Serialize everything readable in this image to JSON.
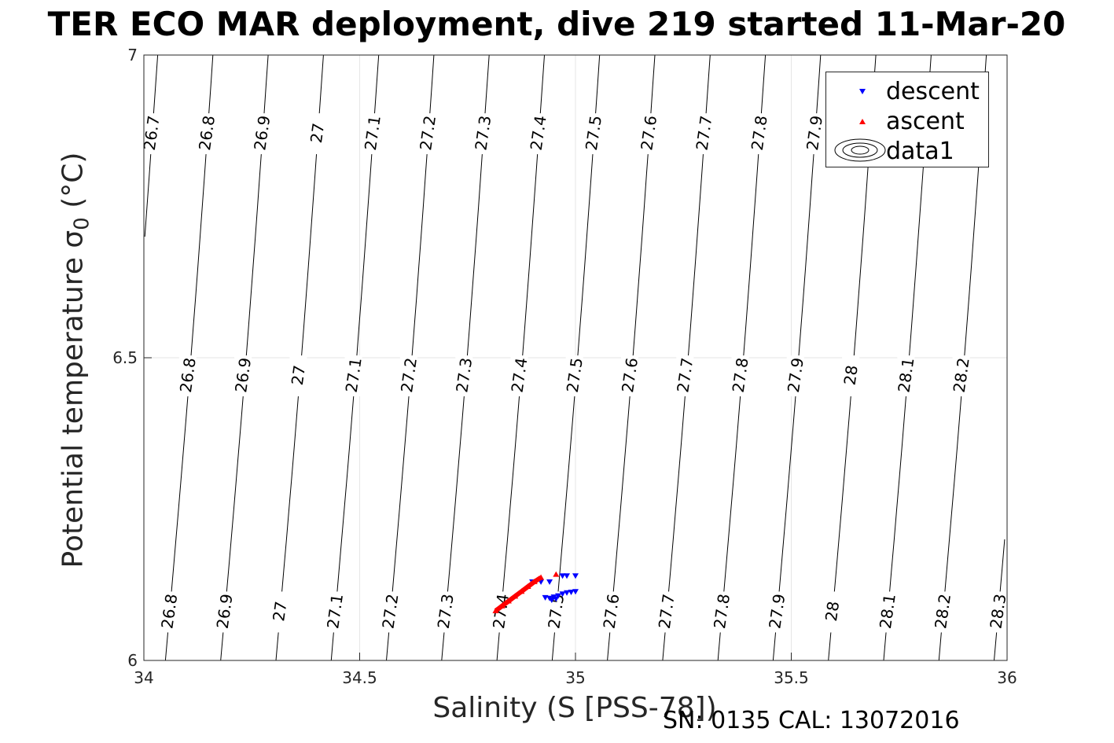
{
  "chart_data": {
    "type": "scatter",
    "title": "TER ECO MAR deployment, dive 219 started 11-Mar-20",
    "xlabel": "Salinity (S [PSS-78])",
    "ylabel": "Potential temperature σ",
    "ylabel_subscript": "0",
    "ylabel_unit": " (°C)",
    "xlim": [
      34,
      36
    ],
    "ylim": [
      6,
      7
    ],
    "x_ticks": [
      "34",
      "34.5",
      "35",
      "35.5",
      "36"
    ],
    "y_ticks": [
      "6",
      "6.5",
      "7"
    ],
    "grid": true,
    "legend_position": "top-right",
    "legend": [
      {
        "label": "descent",
        "marker": "triangle-down",
        "color": "#0000ff"
      },
      {
        "label": "ascent",
        "marker": "triangle-up",
        "color": "#ff0000"
      },
      {
        "label": "data1",
        "marker": "contour",
        "color": "#000000"
      }
    ],
    "series": [
      {
        "name": "descent",
        "color": "#0000ff",
        "marker": "triangle-down",
        "points": [
          [
            34.9,
            6.13
          ],
          [
            34.92,
            6.13
          ],
          [
            34.94,
            6.13
          ],
          [
            34.97,
            6.14
          ],
          [
            34.98,
            6.14
          ],
          [
            35.0,
            6.14
          ],
          [
            34.93,
            6.104
          ],
          [
            34.94,
            6.103
          ],
          [
            34.95,
            6.105
          ],
          [
            34.96,
            6.107
          ],
          [
            34.97,
            6.11
          ],
          [
            34.98,
            6.112
          ],
          [
            34.99,
            6.113
          ],
          [
            35.0,
            6.114
          ],
          [
            34.945,
            6.1
          ],
          [
            34.955,
            6.102
          ]
        ]
      },
      {
        "name": "ascent",
        "color": "#ff0000",
        "marker": "triangle-up",
        "points": [
          [
            34.815,
            6.082
          ],
          [
            34.83,
            6.09
          ],
          [
            34.845,
            6.098
          ],
          [
            34.86,
            6.106
          ],
          [
            34.875,
            6.114
          ],
          [
            34.89,
            6.122
          ],
          [
            34.905,
            6.13
          ],
          [
            34.92,
            6.137
          ],
          [
            34.955,
            6.142
          ]
        ]
      }
    ],
    "contours": {
      "bands": [
        {
          "t": 7.0,
          "x0": 34.0,
          "rows": [
            "26.7",
            "26.8",
            "26.9",
            "27",
            "27.1",
            "27.2",
            "27.3",
            "27.4",
            "27.5",
            "27.6",
            "27.7",
            "27.8",
            "27.9",
            "28",
            "28.1",
            "28.2"
          ]
        },
        {
          "t": 6.5,
          "x0": 34.05,
          "rows": [
            "26.8",
            "26.9",
            "27",
            "27.1",
            "27.2",
            "27.3",
            "27.4",
            "27.5",
            "27.6",
            "27.7",
            "27.8",
            "27.9",
            "28",
            "28.1",
            "28.2"
          ]
        },
        {
          "t": 6.0,
          "x0": 34.05,
          "rows": [
            "26.8",
            "26.9",
            "27",
            "27.1",
            "27.2",
            "27.3",
            "27.4",
            "27.5",
            "27.6",
            "27.7",
            "27.8",
            "27.9",
            "28",
            "28.1",
            "28.2",
            "28.3"
          ]
        }
      ],
      "label_levels_top": [
        "26.7",
        "26.8",
        "26.9",
        "27",
        "27.1",
        "27.2",
        "27.3",
        "27.4",
        "27.5",
        "27.6",
        "27.7",
        "27.8",
        "27.9",
        "28",
        "28.1",
        "28.2"
      ],
      "label_levels_mid": [
        "26.8",
        "26.9",
        "27",
        "27.1",
        "27.2",
        "27.3",
        "27.4",
        "27.5",
        "27.6",
        "27.7",
        "27.8",
        "27.9",
        "28",
        "28.1",
        "28.2"
      ],
      "label_levels_bottom": [
        "26.8",
        "26.9",
        "27",
        "27.1",
        "27.2",
        "27.3",
        "27.4",
        "27.5",
        "27.6",
        "27.7",
        "27.8",
        "27.9",
        "28",
        "28.1",
        "28.2",
        "28.3"
      ]
    }
  },
  "footer": "SN: 0135  CAL: 13072016"
}
